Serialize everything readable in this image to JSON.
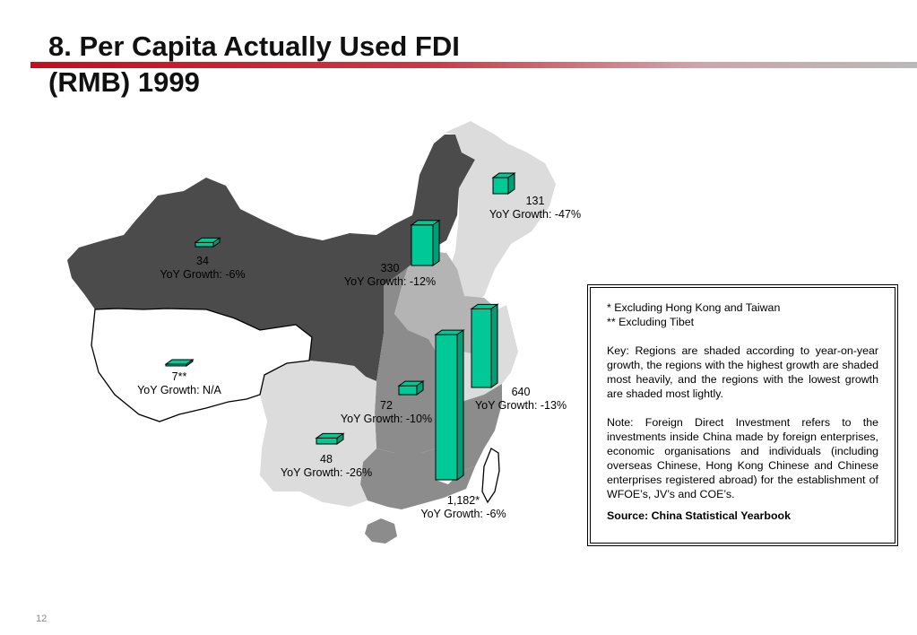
{
  "title": {
    "line1": "8. Per Capita Actually Used FDI",
    "line2": "(RMB) 1999"
  },
  "colors": {
    "rule_accent": "#c0101e",
    "bar_fill": "#00c896",
    "region_darkest": "#4b4b4b",
    "region_dark": "#8c8c8c",
    "region_medium": "#b4b4b4",
    "region_light": "#dcdcdc",
    "region_white": "#ffffff"
  },
  "chart_data": {
    "type": "bar",
    "subtype": "3d-bars-on-map",
    "categories": [
      "131",
      "34",
      "330",
      "7**",
      "72",
      "640",
      "48",
      "1,182*"
    ],
    "values": [
      131,
      34,
      330,
      7,
      72,
      640,
      48,
      1182
    ],
    "series": [
      {
        "values": [
          131,
          34,
          330,
          7,
          72,
          640,
          48,
          1182
        ],
        "labels": [
          "131",
          "34",
          "330",
          "7**",
          "72",
          "640",
          "48",
          "1,182*"
        ],
        "growth": [
          "YoY Growth: -47%",
          "YoY Growth: -6%",
          "YoY Growth: -12%",
          "YoY Growth: N/A",
          "YoY Growth: -10%",
          "YoY Growth: -13%",
          "YoY Growth: -26%",
          "YoY Growth: -6%"
        ]
      }
    ],
    "title": "8. Per Capita Actually Used FDI (RMB) 1999",
    "xlabel": "",
    "ylabel": "",
    "ylim": [
      0,
      1200
    ],
    "grid": false,
    "legend": "none"
  },
  "key": {
    "note1": "*  Excluding Hong Kong and Taiwan",
    "note2": "** Excluding Tibet",
    "para1": "Key: Regions are shaded according to year-on-year growth, the regions with the highest growth are shaded most heavily, and the regions with the lowest growth are shaded most lightly.",
    "para2": "Note: Foreign Direct Investment refers to the investments inside China made by foreign enterprises, economic organisations and individuals (including overseas Chinese, Hong Kong Chinese and Chinese enterprises registered abroad) for the establishment of WFOE’s, JV’s and COE’s.",
    "source": "Source: China Statistical Yearbook"
  },
  "page_number": "12"
}
